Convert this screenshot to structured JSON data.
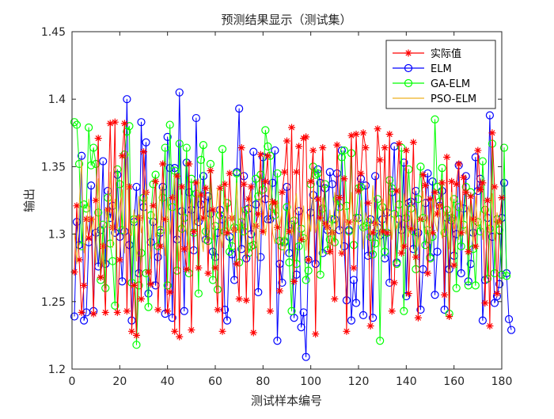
{
  "chart_data": {
    "type": "line",
    "title": "预测结果显示（测试集）",
    "xlabel": "测试样本编号",
    "ylabel": "输出",
    "xlim": [
      0,
      180
    ],
    "ylim": [
      1.2,
      1.45
    ],
    "x_ticks": [
      0,
      20,
      40,
      60,
      80,
      100,
      120,
      140,
      160,
      180
    ],
    "y_ticks": [
      1.2,
      1.25,
      1.3,
      1.35,
      1.4,
      1.45
    ],
    "x_tick_labels": [
      "0",
      "20",
      "40",
      "60",
      "80",
      "100",
      "120",
      "140",
      "160",
      "180"
    ],
    "y_tick_labels": [
      "1.2",
      "1.25",
      "1.3",
      "1.35",
      "1.4",
      "1.45"
    ],
    "legend_position": "top-right",
    "n_samples": 180,
    "series": [
      {
        "name": "实际值",
        "color": "#ff0000",
        "marker": "asterisk",
        "values": [
          1.272,
          1.321,
          1.281,
          1.242,
          1.262,
          1.311,
          1.297,
          1.311,
          1.241,
          1.325,
          1.371,
          1.268,
          1.291,
          1.242,
          1.318,
          1.382,
          1.305,
          1.383,
          1.242,
          1.281,
          1.358,
          1.382,
          1.243,
          1.335,
          1.228,
          1.262,
          1.225,
          1.312,
          1.252,
          1.361,
          1.331,
          1.272,
          1.263,
          1.321,
          1.339,
          1.244,
          1.291,
          1.352,
          1.311,
          1.243,
          1.257,
          1.327,
          1.228,
          1.343,
          1.224,
          1.335,
          1.289,
          1.274,
          1.352,
          1.229,
          1.302,
          1.338,
          1.275,
          1.329,
          1.312,
          1.334,
          1.271,
          1.347,
          1.318,
          1.275,
          1.244,
          1.334,
          1.228,
          1.337,
          1.301,
          1.345,
          1.312,
          1.303,
          1.278,
          1.252,
          1.364,
          1.337,
          1.251,
          1.326,
          1.335,
          1.227,
          1.306,
          1.315,
          1.359,
          1.302,
          1.339,
          1.358,
          1.243,
          1.324,
          1.323,
          1.305,
          1.258,
          1.331,
          1.346,
          1.369,
          1.302,
          1.379,
          1.265,
          1.346,
          1.365,
          1.296,
          1.371,
          1.372,
          1.281,
          1.339,
          1.362,
          1.226,
          1.326,
          1.312,
          1.364,
          1.308,
          1.305,
          1.287,
          1.301,
          1.252,
          1.366,
          1.327,
          1.286,
          1.341,
          1.228,
          1.309,
          1.373,
          1.275,
          1.374,
          1.332,
          1.345,
          1.375,
          1.364,
          1.323,
          1.232,
          1.301,
          1.308,
          1.378,
          1.355,
          1.302,
          1.364,
          1.301,
          1.374,
          1.243,
          1.264,
          1.332,
          1.367,
          1.286,
          1.291,
          1.362,
          1.256,
          1.304,
          1.368,
          1.283,
          1.238,
          1.311,
          1.344,
          1.336,
          1.271,
          1.326,
          1.301,
          1.331,
          1.315,
          1.321,
          1.338,
          1.255,
          1.357,
          1.239,
          1.339,
          1.277,
          1.337,
          1.352,
          1.301,
          1.342,
          1.331,
          1.287,
          1.328,
          1.311,
          1.291,
          1.362,
          1.333,
          1.338,
          1.249,
          1.325,
          1.232,
          1.375,
          1.335,
          1.256,
          1.309,
          1.327
        ]
      },
      {
        "name": "ELM",
        "color": "#0000ff",
        "marker": "circle",
        "values": [
          1.239,
          1.309,
          1.292,
          1.358,
          1.236,
          1.242,
          1.294,
          1.336,
          1.243,
          1.301,
          1.276,
          1.303,
          1.354,
          1.278,
          1.332,
          1.312,
          1.321,
          1.301,
          1.344,
          1.298,
          1.265,
          1.302,
          1.4,
          1.292,
          1.236,
          1.309,
          1.335,
          1.271,
          1.383,
          1.32,
          1.368,
          1.256,
          1.294,
          1.309,
          1.262,
          1.283,
          1.301,
          1.335,
          1.241,
          1.372,
          1.349,
          1.238,
          1.349,
          1.296,
          1.405,
          1.317,
          1.243,
          1.353,
          1.331,
          1.318,
          1.288,
          1.386,
          1.309,
          1.322,
          1.343,
          1.296,
          1.328,
          1.315,
          1.287,
          1.283,
          1.301,
          1.318,
          1.311,
          1.244,
          1.236,
          1.298,
          1.285,
          1.266,
          1.346,
          1.393,
          1.289,
          1.343,
          1.282,
          1.319,
          1.3,
          1.361,
          1.322,
          1.257,
          1.283,
          1.357,
          1.326,
          1.311,
          1.311,
          1.338,
          1.362,
          1.221,
          1.278,
          1.264,
          1.294,
          1.335,
          1.286,
          1.307,
          1.238,
          1.27,
          1.317,
          1.231,
          1.242,
          1.209,
          1.281,
          1.316,
          1.329,
          1.278,
          1.348,
          1.338,
          1.286,
          1.334,
          1.303,
          1.346,
          1.337,
          1.311,
          1.345,
          1.303,
          1.362,
          1.291,
          1.251,
          1.303,
          1.236,
          1.266,
          1.249,
          1.312,
          1.341,
          1.24,
          1.336,
          1.284,
          1.311,
          1.238,
          1.343,
          1.305,
          1.299,
          1.311,
          1.282,
          1.316,
          1.264,
          1.331,
          1.365,
          1.279,
          1.311,
          1.303,
          1.353,
          1.254,
          1.323,
          1.324,
          1.289,
          1.332,
          1.301,
          1.244,
          1.274,
          1.323,
          1.345,
          1.283,
          1.339,
          1.255,
          1.287,
          1.321,
          1.332,
          1.244,
          1.312,
          1.274,
          1.31,
          1.284,
          1.3,
          1.351,
          1.271,
          1.319,
          1.343,
          1.265,
          1.278,
          1.301,
          1.357,
          1.332,
          1.341,
          1.236,
          1.266,
          1.312,
          1.388,
          1.298,
          1.249,
          1.254,
          1.263,
          1.312,
          1.338,
          1.271,
          1.237,
          1.229
        ]
      },
      {
        "name": "GA-ELM",
        "color": "#00ff00",
        "marker": "circle",
        "values": [
          1.383,
          1.381,
          1.352,
          1.291,
          1.322,
          1.319,
          1.379,
          1.351,
          1.364,
          1.352,
          1.316,
          1.266,
          1.307,
          1.26,
          1.327,
          1.293,
          1.28,
          1.247,
          1.348,
          1.337,
          1.303,
          1.359,
          1.376,
          1.38,
          1.264,
          1.311,
          1.218,
          1.262,
          1.286,
          1.327,
          1.271,
          1.246,
          1.314,
          1.337,
          1.344,
          1.291,
          1.303,
          1.327,
          1.364,
          1.262,
          1.381,
          1.32,
          1.347,
          1.273,
          1.367,
          1.304,
          1.312,
          1.364,
          1.271,
          1.341,
          1.301,
          1.33,
          1.256,
          1.355,
          1.366,
          1.302,
          1.295,
          1.352,
          1.266,
          1.306,
          1.259,
          1.314,
          1.363,
          1.302,
          1.323,
          1.287,
          1.291,
          1.305,
          1.345,
          1.279,
          1.309,
          1.302,
          1.318,
          1.286,
          1.291,
          1.292,
          1.341,
          1.328,
          1.344,
          1.333,
          1.377,
          1.365,
          1.358,
          1.32,
          1.314,
          1.345,
          1.295,
          1.291,
          1.295,
          1.32,
          1.279,
          1.243,
          1.31,
          1.278,
          1.291,
          1.304,
          1.297,
          1.266,
          1.273,
          1.337,
          1.35,
          1.344,
          1.345,
          1.27,
          1.319,
          1.337,
          1.288,
          1.296,
          1.311,
          1.294,
          1.326,
          1.32,
          1.357,
          1.362,
          1.321,
          1.302,
          1.36,
          1.292,
          1.312,
          1.334,
          1.335,
          1.305,
          1.306,
          1.309,
          1.298,
          1.285,
          1.293,
          1.326,
          1.221,
          1.32,
          1.287,
          1.301,
          1.34,
          1.334,
          1.315,
          1.278,
          1.322,
          1.364,
          1.243,
          1.312,
          1.348,
          1.319,
          1.302,
          1.274,
          1.326,
          1.35,
          1.312,
          1.292,
          1.303,
          1.282,
          1.298,
          1.385,
          1.335,
          1.324,
          1.349,
          1.301,
          1.318,
          1.241,
          1.312,
          1.326,
          1.26,
          1.32,
          1.291,
          1.307,
          1.335,
          1.262,
          1.331,
          1.289,
          1.262,
          1.309,
          1.302,
          1.354,
          1.318,
          1.267,
          1.304,
          1.367,
          1.271,
          1.311,
          1.303,
          1.27,
          1.364,
          1.269
        ]
      },
      {
        "name": "PSO-ELM",
        "color": "#edb120",
        "marker": "none",
        "values": [
          1.301,
          1.278,
          1.321,
          1.355,
          1.286,
          1.302,
          1.326,
          1.301,
          1.313,
          1.278,
          1.341,
          1.302,
          1.276,
          1.319,
          1.308,
          1.346,
          1.29,
          1.326,
          1.304,
          1.322,
          1.333,
          1.286,
          1.361,
          1.301,
          1.299,
          1.318,
          1.28,
          1.328,
          1.301,
          1.313,
          1.337,
          1.3,
          1.282,
          1.319,
          1.298,
          1.309,
          1.335,
          1.306,
          1.284,
          1.327,
          1.3,
          1.318,
          1.343,
          1.302,
          1.28,
          1.329,
          1.311,
          1.301,
          1.287,
          1.326,
          1.304,
          1.312,
          1.341,
          1.3,
          1.287,
          1.324,
          1.303,
          1.317,
          1.296,
          1.311,
          1.334,
          1.301,
          1.29,
          1.327,
          1.306,
          1.302,
          1.316,
          1.294,
          1.338,
          1.301,
          1.32,
          1.304,
          1.285,
          1.315,
          1.332,
          1.301,
          1.309,
          1.28,
          1.327,
          1.316,
          1.299,
          1.312,
          1.34,
          1.301,
          1.293,
          1.324,
          1.306,
          1.318,
          1.285,
          1.309,
          1.324,
          1.299,
          1.316,
          1.33,
          1.294,
          1.303,
          1.321,
          1.288,
          1.315,
          1.302,
          1.333,
          1.301,
          1.311,
          1.284,
          1.327,
          1.31,
          1.3,
          1.318,
          1.293,
          1.331,
          1.305,
          1.318,
          1.286,
          1.322,
          1.306,
          1.31,
          1.331,
          1.295,
          1.313,
          1.307,
          1.325,
          1.289,
          1.316,
          1.309,
          1.3,
          1.336,
          1.302,
          1.311,
          1.291,
          1.326,
          1.314,
          1.302,
          1.329,
          1.296,
          1.317,
          1.304,
          1.312,
          1.288,
          1.33,
          1.308,
          1.298,
          1.323,
          1.303,
          1.319,
          1.291,
          1.311,
          1.332,
          1.3,
          1.314,
          1.293,
          1.326,
          1.309,
          1.302,
          1.322,
          1.297,
          1.317,
          1.308,
          1.289,
          1.331,
          1.304,
          1.313,
          1.296,
          1.325,
          1.306,
          1.3,
          1.321,
          1.312,
          1.292,
          1.328,
          1.305,
          1.317,
          1.296,
          1.322,
          1.309,
          1.301,
          1.33,
          1.295,
          1.316,
          1.307,
          1.311
        ]
      }
    ]
  }
}
